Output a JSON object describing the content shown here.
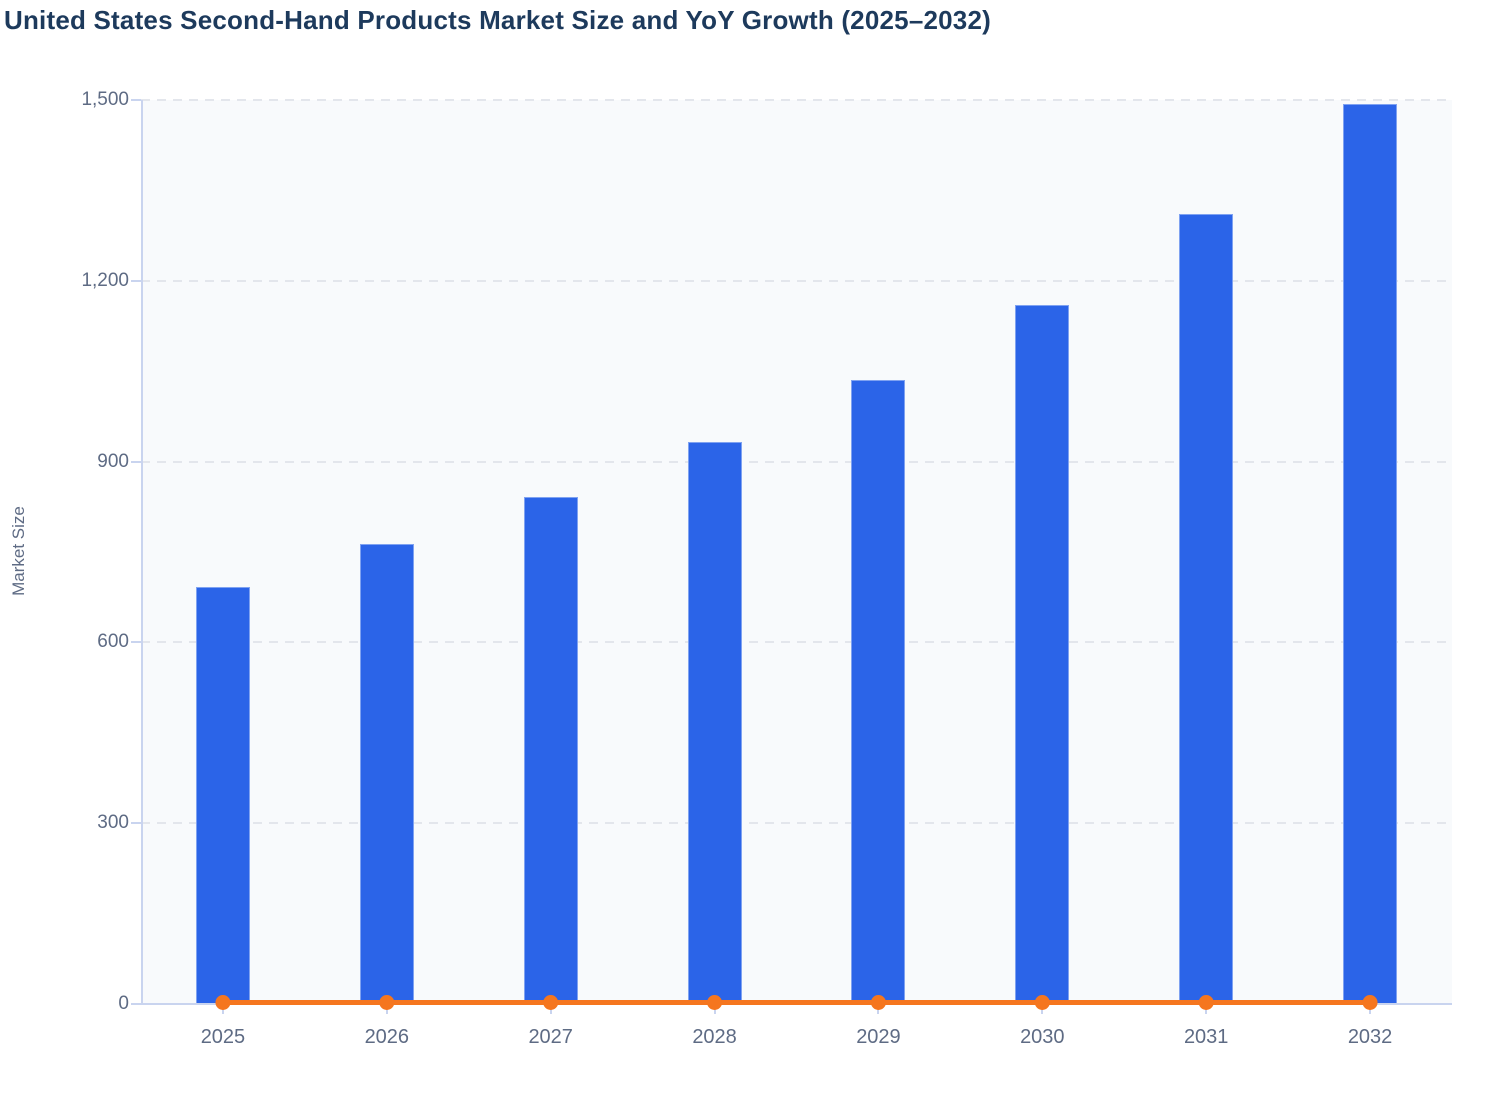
{
  "page": {
    "title": "United States Second-Hand Products Market Size and YoY Growth (2025–2032)"
  },
  "colors": {
    "bar_fill": "#2b64e8",
    "bar_border": "#7fa2f1",
    "line": "#f5761f",
    "marker": "#f5761f",
    "title_text": "#1d3a5c",
    "tick_text": "#5e6b84",
    "plot_background": "#f8fafc",
    "gridline": "#e3e6ec",
    "axis_line": "#c9d4ef"
  },
  "chart_data": {
    "type": "bar",
    "subtype": "combo-bar-line",
    "title": "United States Second-Hand Products Market Size and YoY Growth (2025–2032)",
    "categories": [
      "2025",
      "2026",
      "2027",
      "2028",
      "2029",
      "2030",
      "2031",
      "2032"
    ],
    "series": [
      {
        "name": "Market Size",
        "type": "bar",
        "color": "#2b64e8",
        "values": [
          692,
          763,
          841,
          932,
          1035,
          1160,
          1311,
          1493
        ]
      },
      {
        "name": "YoY Growth",
        "type": "line",
        "color": "#f5761f",
        "values": [
          0,
          0,
          0,
          0,
          0,
          0,
          0,
          0
        ]
      }
    ],
    "xlabel": "",
    "ylabel": "Market Size",
    "ylim": [
      0,
      1500
    ],
    "y_tick_values": [
      0,
      300,
      600,
      900,
      1200,
      1500
    ],
    "y_tick_labels": [
      "0",
      "300",
      "600",
      "900",
      "1,200",
      "1,500"
    ],
    "grid": "horizontal-dashed",
    "legend_position": "none"
  }
}
